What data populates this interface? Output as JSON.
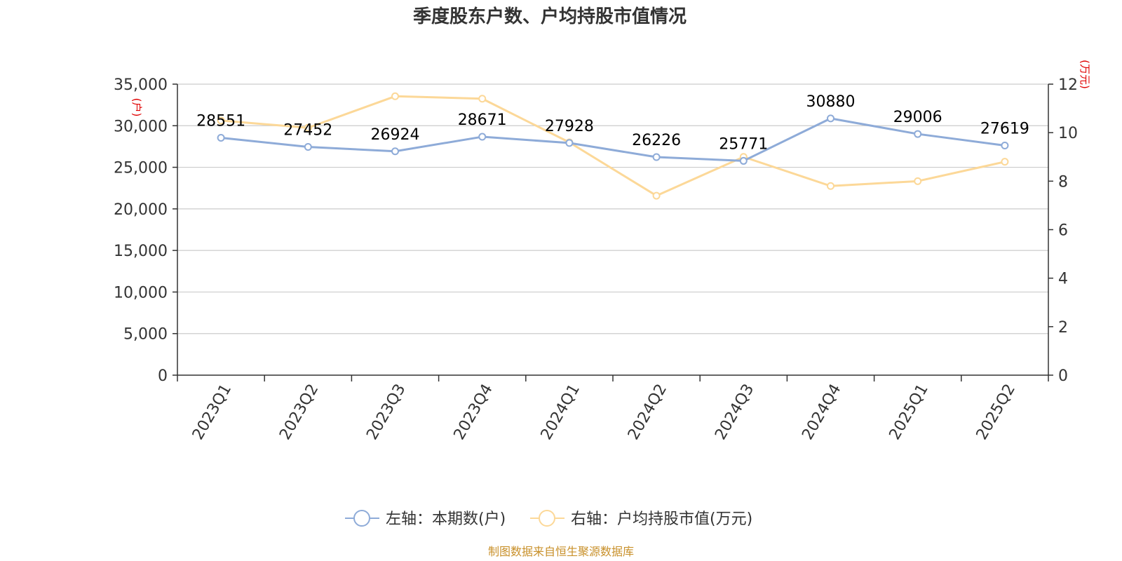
{
  "chart_data": {
    "type": "line",
    "title": "季度股东户数、户均持股市值情况",
    "categories": [
      "2023Q1",
      "2023Q2",
      "2023Q3",
      "2023Q4",
      "2024Q1",
      "2024Q2",
      "2024Q3",
      "2024Q4",
      "2025Q1",
      "2025Q2"
    ],
    "left_axis": {
      "unit": "(户)",
      "ylim": [
        0,
        35000
      ],
      "ticks": [
        "0",
        "5,000",
        "10,000",
        "15,000",
        "20,000",
        "25,000",
        "30,000",
        "35,000"
      ],
      "tick_values": [
        0,
        5000,
        10000,
        15000,
        20000,
        25000,
        30000,
        35000
      ]
    },
    "right_axis": {
      "unit": "(万元)",
      "ylim": [
        0,
        12
      ],
      "ticks": [
        "0",
        "2",
        "4",
        "6",
        "8",
        "10",
        "12"
      ],
      "tick_values": [
        0,
        2,
        4,
        6,
        8,
        10,
        12
      ]
    },
    "series": [
      {
        "name": "左轴：本期数(户)",
        "axis": "left",
        "color": "#8eabd8",
        "values": [
          28551,
          27452,
          26924,
          28671,
          27928,
          26226,
          25771,
          30880,
          29006,
          27619
        ],
        "labels": [
          "28551",
          "27452",
          "26924",
          "28671",
          "27928",
          "26226",
          "25771",
          "30880",
          "29006",
          "27619"
        ]
      },
      {
        "name": "右轴：户均持股市值(万元)",
        "axis": "right",
        "color": "#fcd898",
        "values": [
          10.5,
          10.2,
          11.5,
          11.4,
          9.6,
          7.4,
          9.0,
          7.8,
          8.0,
          8.8
        ]
      }
    ],
    "grid": true,
    "legend_position": "bottom"
  },
  "source": "制图数据来自恒生聚源数据库"
}
